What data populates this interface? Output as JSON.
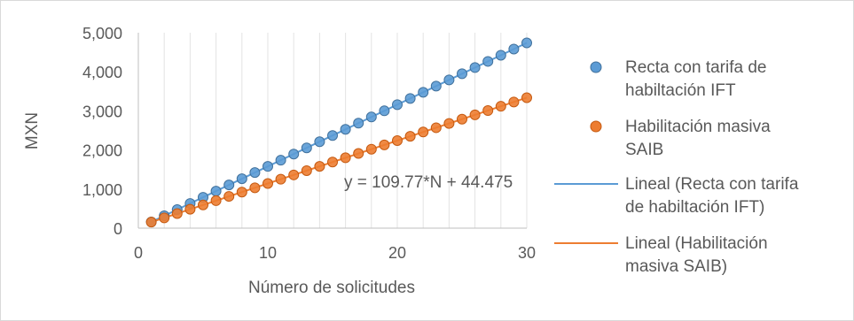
{
  "chart_data": {
    "type": "scatter",
    "xlabel": "Número de solicitudes",
    "ylabel": "MXN",
    "xlim": [
      0,
      30
    ],
    "ylim": [
      0,
      5000
    ],
    "x_ticks": [
      0,
      10,
      20,
      30
    ],
    "x_tick_labels": [
      "0",
      "10",
      "20",
      "30"
    ],
    "y_ticks": [
      0,
      1000,
      2000,
      3000,
      4000,
      5000
    ],
    "y_tick_labels": [
      "0",
      "1,000",
      "2,000",
      "3,000",
      "4,000",
      "5,000"
    ],
    "grid": "vertical",
    "legend_position": "right",
    "annotation": "y = 109.77*N + 44.475",
    "series": [
      {
        "name": "Recta con tarifa de habiltación IFT",
        "color": "#5b9bd5",
        "x": [
          1,
          2,
          3,
          4,
          5,
          6,
          7,
          8,
          9,
          10,
          11,
          12,
          13,
          14,
          15,
          16,
          17,
          18,
          19,
          20,
          21,
          22,
          23,
          24,
          25,
          26,
          27,
          28,
          29,
          30
        ],
        "values": [
          158,
          316,
          474,
          632,
          790,
          948,
          1106,
          1264,
          1422,
          1580,
          1738,
          1896,
          2054,
          2212,
          2370,
          2528,
          2686,
          2844,
          3002,
          3160,
          3318,
          3476,
          3634,
          3792,
          3950,
          4108,
          4266,
          4424,
          4582,
          4740
        ]
      },
      {
        "name": "Habilitación masiva SAIB",
        "color": "#ed7d31",
        "x": [
          1,
          2,
          3,
          4,
          5,
          6,
          7,
          8,
          9,
          10,
          11,
          12,
          13,
          14,
          15,
          16,
          17,
          18,
          19,
          20,
          21,
          22,
          23,
          24,
          25,
          26,
          27,
          28,
          29,
          30
        ],
        "values": [
          154.2,
          264.0,
          373.8,
          483.6,
          593.3,
          703.1,
          812.9,
          922.6,
          1032.4,
          1142.2,
          1251.9,
          1361.7,
          1471.5,
          1581.3,
          1691.0,
          1800.8,
          1910.6,
          2020.3,
          2130.1,
          2239.9,
          2349.6,
          2459.4,
          2569.2,
          2679.0,
          2788.7,
          2898.5,
          3008.3,
          3118.0,
          3227.8,
          3337.6
        ]
      }
    ],
    "trendlines": [
      {
        "name": "Lineal (Recta con tarifa de habiltación IFT)",
        "color": "#5b9bd5"
      },
      {
        "name": "Lineal (Habilitación masiva SAIB)",
        "color": "#ed7d31"
      }
    ],
    "legend": [
      {
        "kind": "marker",
        "series": 0,
        "lines": [
          "Recta con tarifa de",
          "habiltación IFT"
        ]
      },
      {
        "kind": "marker",
        "series": 1,
        "lines": [
          "Habilitación masiva",
          "SAIB"
        ]
      },
      {
        "kind": "line",
        "series": 0,
        "lines": [
          "Lineal (Recta con tarifa",
          "de habiltación IFT)"
        ]
      },
      {
        "kind": "line",
        "series": 1,
        "lines": [
          "Lineal (Habilitación",
          "masiva SAIB)"
        ]
      }
    ]
  }
}
